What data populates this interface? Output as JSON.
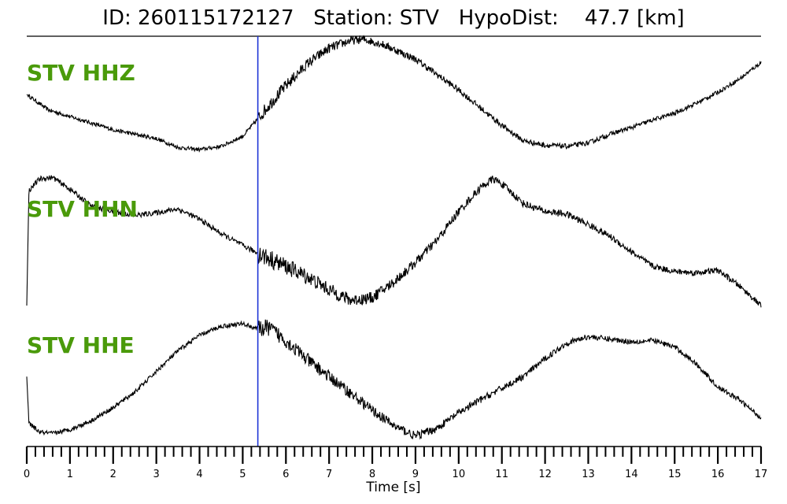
{
  "header": {
    "title": "ID: 260115172127   Station: STV   HypoDist:    47.7 [km]"
  },
  "colors": {
    "trace": "#000000",
    "label": "#4a9a0a",
    "pick": "#1f35d6"
  },
  "chart_data": {
    "type": "line",
    "title": "ID: 260115172127   Station: STV   HypoDist:    47.7 [km]",
    "xlabel": "Time [s]",
    "ylabel": "",
    "xlim": [
      0,
      17
    ],
    "x_ticks": [
      0,
      1,
      2,
      3,
      4,
      5,
      6,
      7,
      8,
      9,
      10,
      11,
      12,
      13,
      14,
      15,
      16,
      17
    ],
    "minor_tick_step": 0.2,
    "grid": false,
    "pick_time": 5.35,
    "series": [
      {
        "name": "STV HHZ",
        "noise": 0.035,
        "noise_after_pick": 0.09,
        "points": [
          [
            0,
            0.5
          ],
          [
            0.5,
            0.36
          ],
          [
            1,
            0.3
          ],
          [
            1.5,
            0.24
          ],
          [
            2,
            0.18
          ],
          [
            2.5,
            0.14
          ],
          [
            3,
            0.1
          ],
          [
            3.5,
            0.02
          ],
          [
            4,
            0.0
          ],
          [
            4.5,
            0.03
          ],
          [
            5,
            0.12
          ],
          [
            5.35,
            0.28
          ],
          [
            5.6,
            0.4
          ],
          [
            6,
            0.58
          ],
          [
            6.5,
            0.78
          ],
          [
            7,
            0.92
          ],
          [
            7.5,
            0.99
          ],
          [
            7.8,
            1.0
          ],
          [
            8.2,
            0.96
          ],
          [
            8.5,
            0.91
          ],
          [
            9,
            0.82
          ],
          [
            9.5,
            0.68
          ],
          [
            10,
            0.54
          ],
          [
            10.5,
            0.38
          ],
          [
            11,
            0.22
          ],
          [
            11.5,
            0.08
          ],
          [
            12,
            0.04
          ],
          [
            12.5,
            0.03
          ],
          [
            13,
            0.06
          ],
          [
            13.5,
            0.14
          ],
          [
            14,
            0.2
          ],
          [
            14.5,
            0.27
          ],
          [
            15,
            0.33
          ],
          [
            15.5,
            0.42
          ],
          [
            16,
            0.52
          ],
          [
            16.5,
            0.64
          ],
          [
            17,
            0.79
          ]
        ]
      },
      {
        "name": "STV HHN",
        "noise": 0.04,
        "noise_after_pick": 0.11,
        "points": [
          [
            0,
            0.0
          ],
          [
            0.05,
            0.88
          ],
          [
            0.3,
            0.97
          ],
          [
            0.6,
            0.98
          ],
          [
            1,
            0.89
          ],
          [
            1.5,
            0.76
          ],
          [
            2,
            0.72
          ],
          [
            2.5,
            0.69
          ],
          [
            3,
            0.71
          ],
          [
            3.5,
            0.74
          ],
          [
            4,
            0.66
          ],
          [
            4.5,
            0.55
          ],
          [
            5,
            0.46
          ],
          [
            5.35,
            0.4
          ],
          [
            6,
            0.3
          ],
          [
            6.5,
            0.22
          ],
          [
            7,
            0.12
          ],
          [
            7.5,
            0.04
          ],
          [
            8,
            0.06
          ],
          [
            8.5,
            0.18
          ],
          [
            9,
            0.33
          ],
          [
            9.5,
            0.5
          ],
          [
            10,
            0.72
          ],
          [
            10.5,
            0.9
          ],
          [
            10.8,
            0.97
          ],
          [
            11,
            0.93
          ],
          [
            11.5,
            0.78
          ],
          [
            12,
            0.72
          ],
          [
            12.5,
            0.7
          ],
          [
            13,
            0.62
          ],
          [
            13.5,
            0.53
          ],
          [
            14,
            0.41
          ],
          [
            14.5,
            0.3
          ],
          [
            15,
            0.26
          ],
          [
            15.5,
            0.25
          ],
          [
            16,
            0.27
          ],
          [
            16.5,
            0.15
          ],
          [
            17,
            0.0
          ]
        ]
      },
      {
        "name": "STV HHE",
        "noise": 0.035,
        "noise_after_pick": 0.1,
        "points": [
          [
            0,
            0.48
          ],
          [
            0.05,
            0.12
          ],
          [
            0.3,
            0.05
          ],
          [
            0.6,
            0.04
          ],
          [
            1,
            0.07
          ],
          [
            1.5,
            0.14
          ],
          [
            2,
            0.24
          ],
          [
            2.5,
            0.36
          ],
          [
            3,
            0.52
          ],
          [
            3.5,
            0.68
          ],
          [
            4,
            0.8
          ],
          [
            4.5,
            0.87
          ],
          [
            5,
            0.89
          ],
          [
            5.35,
            0.85
          ],
          [
            5.6,
            0.86
          ],
          [
            6,
            0.76
          ],
          [
            6.5,
            0.61
          ],
          [
            7,
            0.48
          ],
          [
            7.5,
            0.35
          ],
          [
            8,
            0.22
          ],
          [
            8.5,
            0.1
          ],
          [
            9,
            0.02
          ],
          [
            9.5,
            0.08
          ],
          [
            10,
            0.2
          ],
          [
            10.5,
            0.3
          ],
          [
            11,
            0.39
          ],
          [
            11.5,
            0.48
          ],
          [
            12,
            0.62
          ],
          [
            12.5,
            0.74
          ],
          [
            13,
            0.79
          ],
          [
            13.5,
            0.77
          ],
          [
            14,
            0.75
          ],
          [
            14.5,
            0.76
          ],
          [
            15,
            0.71
          ],
          [
            15.5,
            0.58
          ],
          [
            16,
            0.4
          ],
          [
            16.5,
            0.3
          ],
          [
            17,
            0.16
          ]
        ]
      }
    ]
  }
}
